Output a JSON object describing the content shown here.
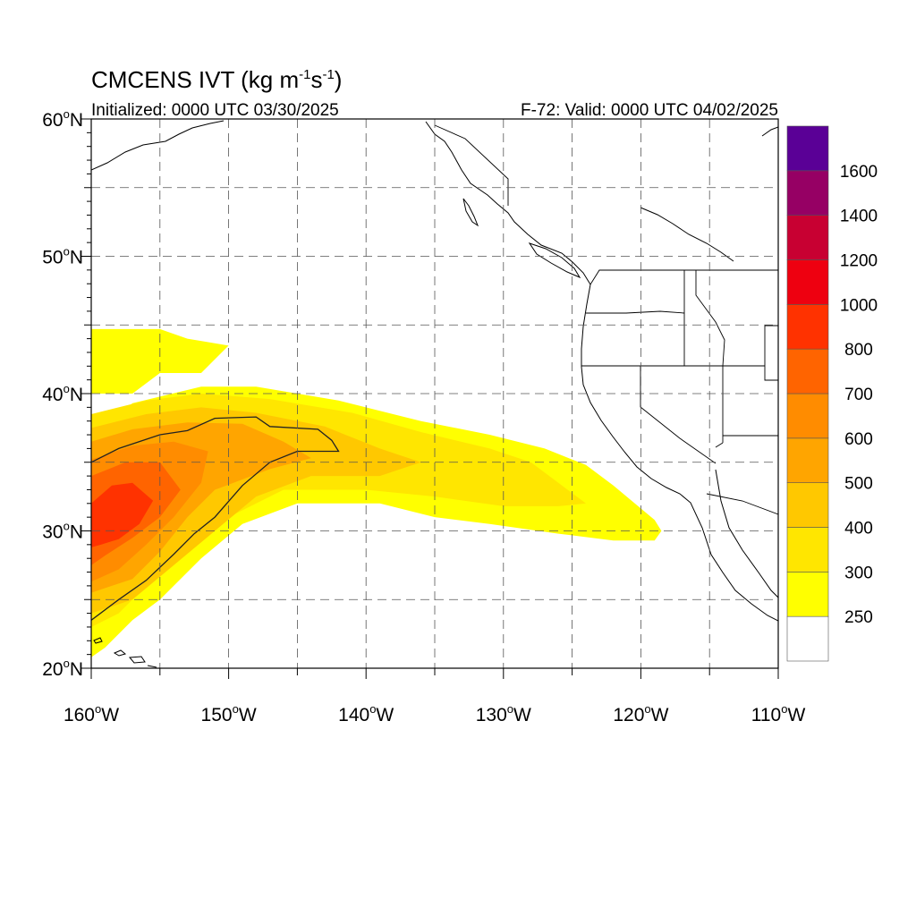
{
  "title": {
    "main": "CMCENS IVT (kg m",
    "sup1": "-1",
    "mid": "s",
    "sup2": "-1",
    "end": ")"
  },
  "subtitle": {
    "left": "Initialized: 0000 UTC 03/30/2025",
    "right": "F-72: Valid: 0000 UTC 04/02/2025"
  },
  "map": {
    "lon_range": [
      -160,
      -110
    ],
    "lat_range": [
      20,
      60
    ],
    "lat_ticks": [
      {
        "value": 60,
        "num": "60",
        "sfx": "N"
      },
      {
        "value": 50,
        "num": "50",
        "sfx": "N"
      },
      {
        "value": 40,
        "num": "40",
        "sfx": "N"
      },
      {
        "value": 30,
        "num": "30",
        "sfx": "N"
      },
      {
        "value": 20,
        "num": "20",
        "sfx": "N"
      }
    ],
    "lon_ticks": [
      {
        "value": -160,
        "num": "160",
        "sfx": "W"
      },
      {
        "value": -150,
        "num": "150",
        "sfx": "W"
      },
      {
        "value": -140,
        "num": "140",
        "sfx": "W"
      },
      {
        "value": -130,
        "num": "130",
        "sfx": "W"
      },
      {
        "value": -120,
        "num": "120",
        "sfx": "W"
      },
      {
        "value": -110,
        "num": "110",
        "sfx": "W"
      }
    ],
    "grid_dashed": true
  },
  "colorbar": {
    "levels": [
      {
        "label": "",
        "color": "#ffffff"
      },
      {
        "label": "250",
        "color": "#ffff00"
      },
      {
        "label": "300",
        "color": "#ffe600"
      },
      {
        "label": "400",
        "color": "#ffc800"
      },
      {
        "label": "500",
        "color": "#ffa500"
      },
      {
        "label": "600",
        "color": "#ff8c00"
      },
      {
        "label": "700",
        "color": "#ff6400"
      },
      {
        "label": "800",
        "color": "#ff3200"
      },
      {
        "label": "1000",
        "color": "#ee0010"
      },
      {
        "label": "1200",
        "color": "#c80032"
      },
      {
        "label": "1400",
        "color": "#960064"
      },
      {
        "label": "1600",
        "color": "#5a0096"
      }
    ]
  },
  "ivt_field": [
    {
      "level": 1,
      "points": [
        [
          -160,
          44.7
        ],
        [
          -155,
          44.7
        ],
        [
          -153,
          44
        ],
        [
          -150,
          43.5
        ],
        [
          -152,
          41.5
        ],
        [
          -155,
          41.5
        ],
        [
          -157,
          40
        ],
        [
          -160,
          40
        ],
        [
          -160,
          37
        ],
        [
          -157,
          39.3
        ],
        [
          -152,
          40.5
        ],
        [
          -148,
          40.5
        ],
        [
          -142,
          39.5
        ],
        [
          -136,
          38
        ],
        [
          -131,
          37
        ],
        [
          -127,
          36
        ],
        [
          -124,
          34.8
        ],
        [
          -122,
          33.3
        ],
        [
          -119,
          30.8
        ],
        [
          -118.5,
          30
        ],
        [
          -119,
          29.3
        ],
        [
          -122,
          29.3
        ],
        [
          -126,
          29.8
        ],
        [
          -131,
          30.5
        ],
        [
          -135,
          31
        ],
        [
          -139,
          32
        ],
        [
          -145,
          32
        ],
        [
          -149,
          30.5
        ],
        [
          -152,
          28
        ],
        [
          -155,
          25
        ],
        [
          -157,
          23.5
        ],
        [
          -159,
          21.5
        ],
        [
          -160,
          20.8
        ]
      ]
    },
    {
      "level": 2,
      "points": [
        [
          -160,
          38.5
        ],
        [
          -156,
          39.5
        ],
        [
          -152,
          40
        ],
        [
          -147,
          39.6
        ],
        [
          -141,
          38.6
        ],
        [
          -136,
          37.2
        ],
        [
          -131,
          36
        ],
        [
          -128,
          35
        ],
        [
          -126,
          33.5
        ],
        [
          -124,
          32
        ],
        [
          -126,
          31.8
        ],
        [
          -130,
          31.8
        ],
        [
          -135,
          32.5
        ],
        [
          -140,
          33
        ],
        [
          -146,
          33
        ],
        [
          -150,
          31
        ],
        [
          -153,
          28.5
        ],
        [
          -156,
          26
        ],
        [
          -158,
          24
        ],
        [
          -160,
          23
        ]
      ]
    },
    {
      "level": 3,
      "points": [
        [
          -160,
          37.5
        ],
        [
          -156,
          38.5
        ],
        [
          -152,
          39
        ],
        [
          -148,
          38.6
        ],
        [
          -143,
          37.6
        ],
        [
          -139,
          36
        ],
        [
          -136,
          35
        ],
        [
          -139,
          34
        ],
        [
          -144,
          34
        ],
        [
          -148,
          32.5
        ],
        [
          -151,
          30
        ],
        [
          -154,
          27.5
        ],
        [
          -157,
          25
        ],
        [
          -160,
          24
        ]
      ]
    },
    {
      "level": 4,
      "points": [
        [
          -160,
          36.5
        ],
        [
          -157,
          37.4
        ],
        [
          -153,
          37.9
        ],
        [
          -149,
          37.8
        ],
        [
          -146,
          36.5
        ],
        [
          -144,
          35.3
        ],
        [
          -147,
          34.5
        ],
        [
          -151,
          33
        ],
        [
          -153,
          31
        ],
        [
          -155,
          28.5
        ],
        [
          -157,
          26.5
        ],
        [
          -160,
          25.5
        ]
      ]
    },
    {
      "level": 5,
      "points": [
        [
          -160,
          35.2
        ],
        [
          -157,
          36.2
        ],
        [
          -154,
          36.5
        ],
        [
          -151.5,
          35.8
        ],
        [
          -152,
          33.5
        ],
        [
          -154,
          31
        ],
        [
          -156,
          29
        ],
        [
          -158,
          27.2
        ],
        [
          -160,
          26.3
        ]
      ]
    },
    {
      "level": 6,
      "points": [
        [
          -160,
          34
        ],
        [
          -157.5,
          35
        ],
        [
          -155,
          35
        ],
        [
          -153.5,
          33
        ],
        [
          -155,
          31
        ],
        [
          -157,
          29.5
        ],
        [
          -159,
          28.2
        ],
        [
          -160,
          27.5
        ]
      ]
    },
    {
      "level": 7,
      "points": [
        [
          -160,
          32
        ],
        [
          -158.5,
          33.3
        ],
        [
          -157,
          33.5
        ],
        [
          -155.5,
          32.2
        ],
        [
          -156.5,
          30.5
        ],
        [
          -158,
          29.4
        ],
        [
          -159.3,
          29
        ],
        [
          -160,
          28.8
        ]
      ]
    }
  ],
  "contour_500": [
    [
      -160,
      35
    ],
    [
      -158,
      36
    ],
    [
      -155,
      37
    ],
    [
      -153,
      37.3
    ],
    [
      -151,
      38.2
    ],
    [
      -148,
      38.3
    ],
    [
      -147,
      37.6
    ],
    [
      -143.5,
      37.4
    ],
    [
      -142.5,
      36.6
    ],
    [
      -142,
      35.8
    ],
    [
      -145,
      35.8
    ],
    [
      -147,
      35
    ],
    [
      -149,
      33.3
    ],
    [
      -151,
      31
    ],
    [
      -152.5,
      29.8
    ],
    [
      -154,
      28.3
    ],
    [
      -156,
      26.4
    ],
    [
      -158,
      25
    ],
    [
      -160,
      23.5
    ]
  ]
}
